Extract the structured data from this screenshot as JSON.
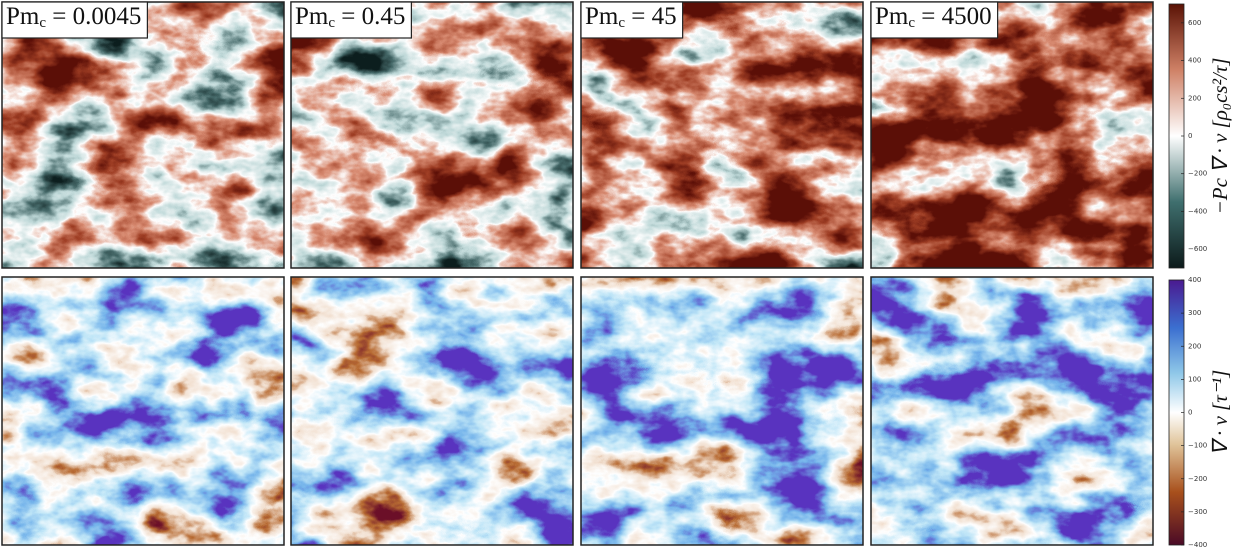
{
  "panel_titles": [
    {
      "name": "Pm",
      "subscript": "c",
      "text": " = 0.0045"
    },
    {
      "name": "Pm",
      "subscript": "c",
      "text": " = 0.45"
    },
    {
      "name": "Pm",
      "subscript": "c",
      "text": " = 45"
    },
    {
      "name": "Pm",
      "subscript": "c",
      "text": " = 4500"
    }
  ],
  "colorbars": [
    {
      "label": "−Pc ∇ · v [ρ₀cs²/τ]",
      "lim": [
        -700,
        700
      ],
      "ticks": [
        {
          "value": -600,
          "label": "−600"
        },
        {
          "value": -400,
          "label": "−400"
        },
        {
          "value": -200,
          "label": "−200"
        },
        0,
        200,
        400,
        600
      ]
    },
    {
      "label": "∇ · v [τ⁻¹]",
      "lim": [
        -400,
        400
      ],
      "ticks": [
        {
          "value": -400,
          "label": "−400"
        },
        {
          "value": -300,
          "label": "−300"
        },
        {
          "value": -200,
          "label": "−200"
        },
        {
          "value": -100,
          "label": "−100"
        },
        0,
        100,
        200,
        300,
        400
      ]
    }
  ]
}
